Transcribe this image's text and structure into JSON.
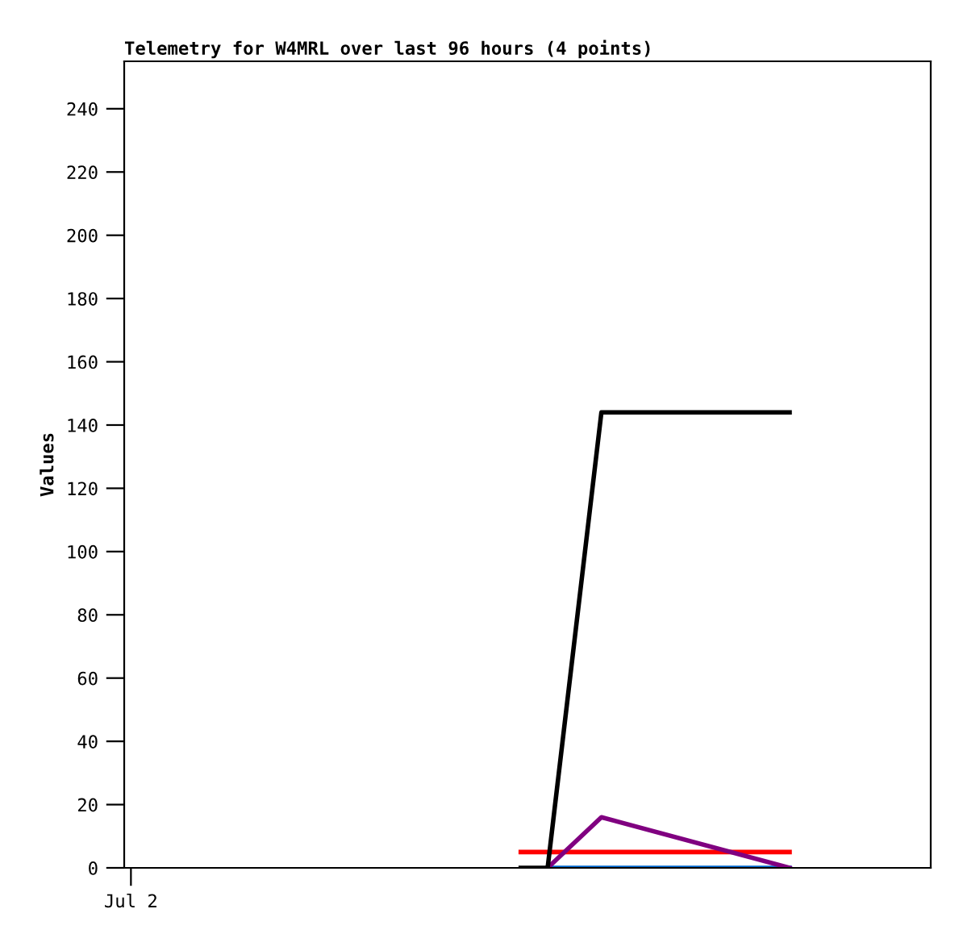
{
  "chart_data": {
    "type": "line",
    "title": "Telemetry for W4MRL over last 96 hours (4 points)",
    "ylabel": "Values",
    "categories": [
      "Jul 2",
      null,
      null,
      null,
      null,
      null,
      null,
      null,
      null,
      null,
      null,
      null,
      null,
      null,
      null,
      null,
      null,
      null,
      null,
      null,
      null,
      null,
      null,
      null,
      null,
      null,
      null,
      null,
      null,
      null,
      null,
      null,
      null,
      null,
      null,
      null,
      null,
      null,
      null,
      null,
      null,
      null,
      null,
      null,
      null,
      null,
      null,
      null,
      null,
      null,
      null,
      null,
      null,
      null,
      null,
      null,
      null,
      null,
      null,
      null
    ],
    "series": [
      {
        "color": "#0066cc",
        "values": [
          null,
          null,
          null,
          null,
          null,
          null,
          null,
          null,
          null,
          null,
          null,
          null,
          null,
          null,
          null,
          null,
          null,
          null,
          null,
          null,
          null,
          null,
          null,
          null,
          null,
          null,
          null,
          null,
          null,
          null,
          null,
          0,
          null,
          null,
          null,
          0,
          null,
          null,
          null,
          null,
          null,
          null,
          null,
          null,
          null,
          null,
          null,
          null,
          null,
          0,
          null,
          null,
          null,
          null,
          null,
          null,
          null,
          null,
          null,
          null
        ]
      },
      {
        "color": "#ff0000",
        "values": [
          null,
          null,
          null,
          null,
          null,
          null,
          null,
          null,
          null,
          null,
          null,
          null,
          null,
          null,
          null,
          null,
          null,
          null,
          null,
          null,
          null,
          null,
          null,
          null,
          null,
          null,
          null,
          null,
          null,
          5,
          null,
          5,
          null,
          null,
          null,
          5,
          null,
          null,
          null,
          null,
          null,
          null,
          null,
          null,
          null,
          null,
          null,
          null,
          null,
          5,
          null,
          null,
          null,
          null,
          null,
          null,
          null,
          null,
          null,
          null
        ]
      },
      {
        "color": "#800080",
        "values": [
          null,
          null,
          null,
          null,
          null,
          null,
          null,
          null,
          null,
          null,
          null,
          null,
          null,
          null,
          null,
          null,
          null,
          null,
          null,
          null,
          null,
          null,
          null,
          null,
          null,
          null,
          null,
          null,
          null,
          null,
          null,
          0,
          null,
          null,
          null,
          16,
          null,
          null,
          null,
          null,
          null,
          null,
          null,
          null,
          null,
          null,
          null,
          null,
          null,
          0,
          null,
          null,
          null,
          null,
          null,
          null,
          null,
          null,
          null,
          null
        ]
      },
      {
        "color": "#000000",
        "values": [
          null,
          null,
          null,
          null,
          null,
          null,
          null,
          null,
          null,
          null,
          null,
          null,
          null,
          null,
          null,
          null,
          null,
          null,
          null,
          null,
          null,
          null,
          null,
          null,
          null,
          null,
          null,
          null,
          null,
          0,
          null,
          0,
          null,
          null,
          null,
          144,
          null,
          null,
          null,
          null,
          null,
          null,
          null,
          null,
          null,
          null,
          null,
          null,
          null,
          144,
          null,
          null,
          null,
          null,
          null,
          null,
          null,
          null,
          null,
          null
        ]
      }
    ],
    "ylim": [
      0,
      255
    ],
    "yticks": [
      0,
      20,
      40,
      60,
      80,
      100,
      120,
      140,
      160,
      180,
      200,
      220,
      240
    ],
    "grid": false,
    "legend": false,
    "marker": "none",
    "line_style": "solid"
  }
}
